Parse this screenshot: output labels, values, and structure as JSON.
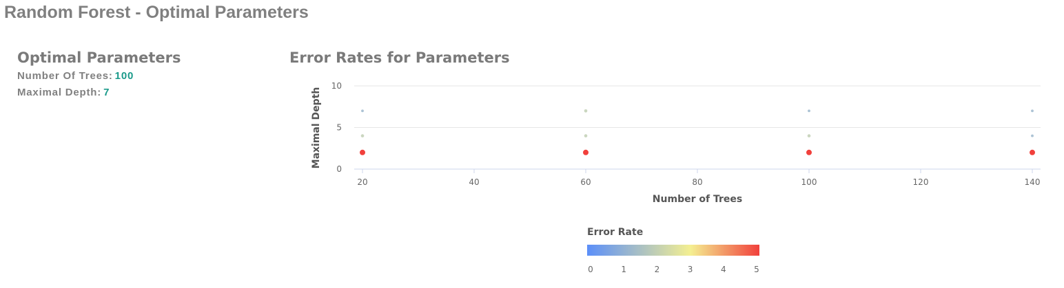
{
  "page": {
    "title": "Random Forest - Optimal Parameters"
  },
  "optimal": {
    "heading": "Optimal Parameters",
    "trees_label": "Number Of Trees:",
    "trees_value": "100",
    "depth_label": "Maximal Depth:",
    "depth_value": "7"
  },
  "colors": {
    "value_accent": "#1a9a8a",
    "gridline": "#e6e6e6",
    "axis_line": "#ccd6eb",
    "scale_low": "#5b8ff9",
    "scale_mid": "#f4ef91",
    "scale_high": "#f1403c"
  },
  "chart_data": {
    "type": "scatter",
    "title": "Error Rates for Parameters",
    "xlabel": "Number of Trees",
    "ylabel": "Maximal Depth",
    "xlim": [
      20,
      140
    ],
    "ylim": [
      0,
      10
    ],
    "x_ticks": [
      20,
      40,
      60,
      80,
      100,
      120,
      140
    ],
    "y_ticks": [
      0,
      5,
      10
    ],
    "grid": true,
    "color_scale": {
      "title": "Error Rate",
      "min": 0,
      "max": 5,
      "ticks": [
        0,
        1,
        2,
        3,
        4,
        5
      ]
    },
    "points": [
      {
        "trees": 20,
        "depth": 7,
        "error": 1.3
      },
      {
        "trees": 20,
        "depth": 4,
        "error": 2.0
      },
      {
        "trees": 20,
        "depth": 2,
        "error": 5.0
      },
      {
        "trees": 60,
        "depth": 7,
        "error": 2.0
      },
      {
        "trees": 60,
        "depth": 4,
        "error": 2.0
      },
      {
        "trees": 60,
        "depth": 2,
        "error": 5.0
      },
      {
        "trees": 100,
        "depth": 7,
        "error": 1.3
      },
      {
        "trees": 100,
        "depth": 4,
        "error": 2.0
      },
      {
        "trees": 100,
        "depth": 2,
        "error": 5.0
      },
      {
        "trees": 140,
        "depth": 7,
        "error": 1.3
      },
      {
        "trees": 140,
        "depth": 4,
        "error": 1.3
      },
      {
        "trees": 140,
        "depth": 2,
        "error": 5.0
      }
    ]
  }
}
